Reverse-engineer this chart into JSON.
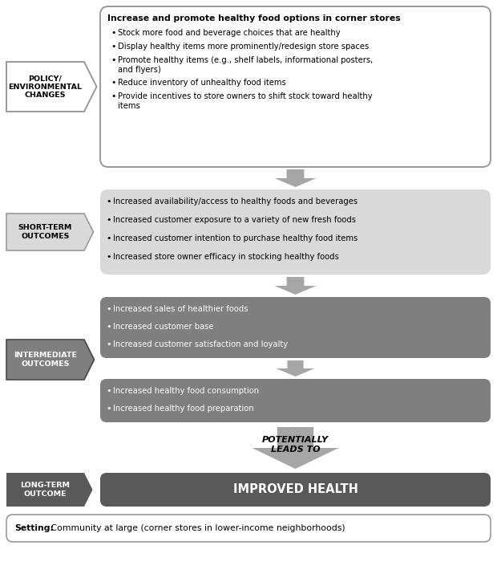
{
  "bg_color": "#ffffff",
  "light_gray": "#d9d9d9",
  "mid_gray": "#7f7f7f",
  "dark_gray": "#595959",
  "arrow_gray": "#a6a6a6",
  "text_black": "#000000",
  "policy_label": "POLICY/\nENVIRONMENTAL\nCHANGES",
  "policy_box_title": "Increase and promote healthy food options in corner stores",
  "policy_bullets": [
    "Stock more food and beverage choices that are healthy",
    "Display healthy items more prominently/redesign store spaces",
    "Promote healthy items (e.g., shelf labels, informational posters,\nand flyers)",
    "Reduce inventory of unhealthy food items",
    "Provide incentives to store owners to shift stock toward healthy\nitems"
  ],
  "short_term_label": "SHORT-TERM\nOUTCOMES",
  "short_term_bullets": [
    "Increased availability/access to healthy foods and beverages",
    "Increased customer exposure to a variety of new fresh foods",
    "Increased customer intention to purchase healthy food items",
    "Increased store owner efficacy in stocking healthy foods"
  ],
  "intermediate_label": "INTERMEDIATE\nOUTCOMES",
  "intermediate_box1_bullets": [
    "Increased sales of healthier foods",
    "Increased customer base",
    "Increased customer satisfaction and loyalty"
  ],
  "intermediate_box2_bullets": [
    "Increased healthy food consumption",
    "Increased healthy food preparation"
  ],
  "potentially_text": "POTENTIALLY\nLEADS TO",
  "long_term_label": "LONG-TERM\nOUTCOME",
  "long_term_text": "IMPROVED HEALTH",
  "setting_bold": "Setting:",
  "setting_rest": " Community at large (corner stores in lower-income neighborhoods)"
}
